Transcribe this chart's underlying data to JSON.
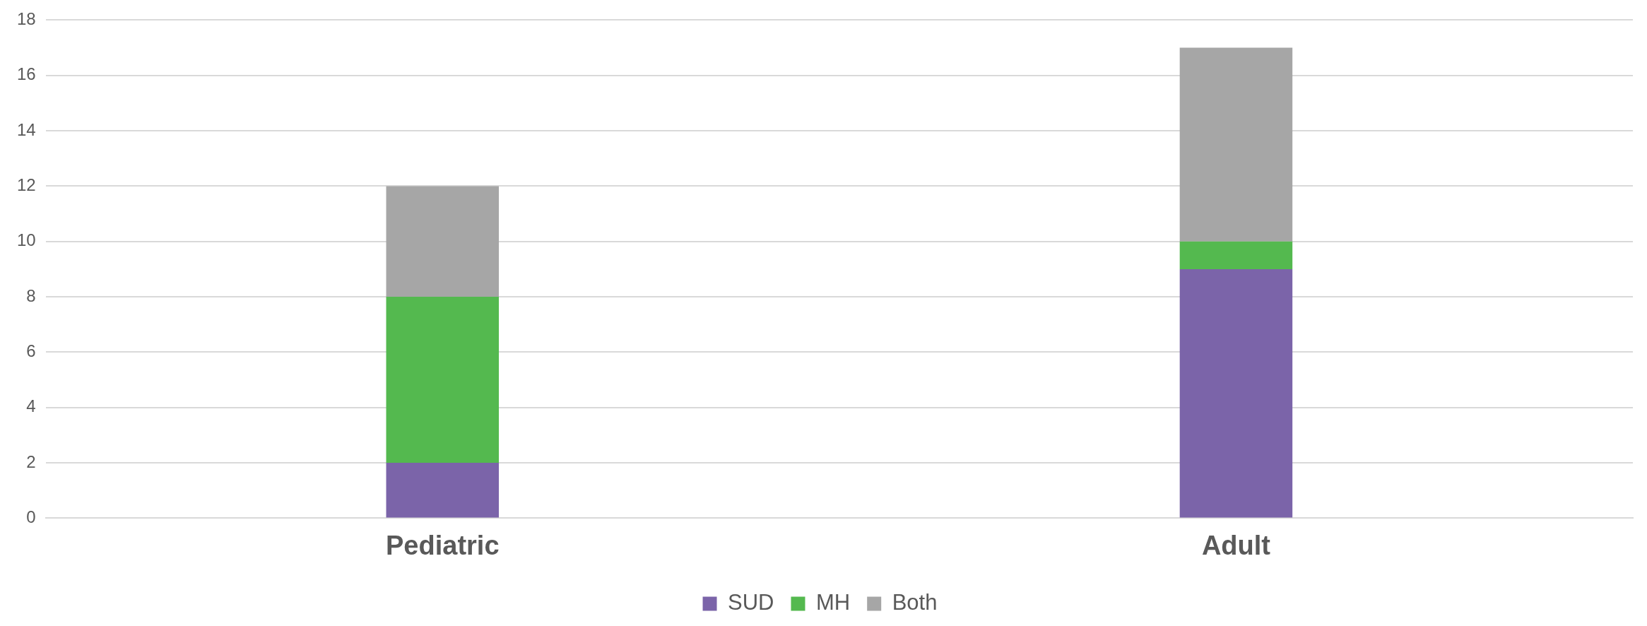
{
  "chart_data": {
    "type": "bar",
    "stacked": true,
    "categories": [
      "Pediatric",
      "Adult"
    ],
    "series": [
      {
        "name": "SUD",
        "color": "#7b64a9",
        "values": [
          2,
          9
        ]
      },
      {
        "name": "MH",
        "color": "#54b94f",
        "values": [
          6,
          1
        ]
      },
      {
        "name": "Both",
        "color": "#a6a6a6",
        "values": [
          4,
          7
        ]
      }
    ],
    "ylim": [
      0,
      18
    ],
    "yticks": [
      0,
      2,
      4,
      6,
      8,
      10,
      12,
      14,
      16,
      18
    ],
    "grid": "y",
    "legend": "bottom"
  }
}
